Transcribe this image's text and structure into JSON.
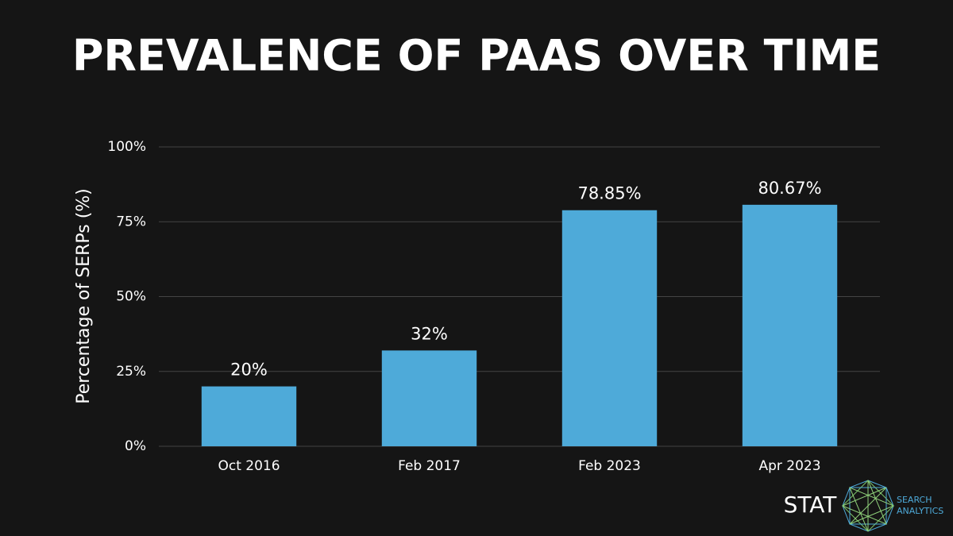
{
  "chart_data": {
    "type": "bar",
    "title": "PREVALENCE OF PAAS OVER TIME",
    "y_label": "Percentage of SERPs (%)",
    "categories": [
      "Oct 2016",
      "Feb 2017",
      "Feb 2023",
      "Apr 2023"
    ],
    "values": [
      20,
      32,
      78.85,
      80.67
    ],
    "value_labels": [
      "20%",
      "32%",
      "78.85%",
      "80.67%"
    ],
    "color": "#4eaad9",
    "ylim": [
      0,
      100
    ],
    "yticks": [
      {
        "value": 0,
        "label": "0%"
      },
      {
        "value": 25,
        "label": "25%"
      },
      {
        "value": 50,
        "label": "50%"
      },
      {
        "value": 75,
        "label": "75%"
      },
      {
        "value": 100,
        "label": "100%"
      }
    ],
    "grid": true
  },
  "logo": {
    "name": "STAT",
    "tagline": [
      "SEARCH",
      "ANALYTICS"
    ]
  }
}
